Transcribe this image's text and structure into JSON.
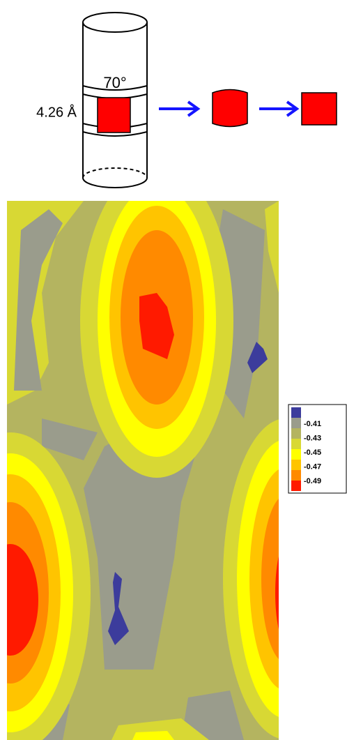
{
  "diagram": {
    "angle_label": "70°",
    "distance_label": "4.26 Å"
  },
  "legend": {
    "colors": [
      "#3c3c9c",
      "#9a9c8c",
      "#b4b460",
      "#d8d834",
      "#ffff00",
      "#ffc400",
      "#ff8a00",
      "#ff1a00"
    ],
    "labels": [
      "-0.41",
      "-0.43",
      "-0.45",
      "-0.47",
      "-0.49"
    ]
  }
}
